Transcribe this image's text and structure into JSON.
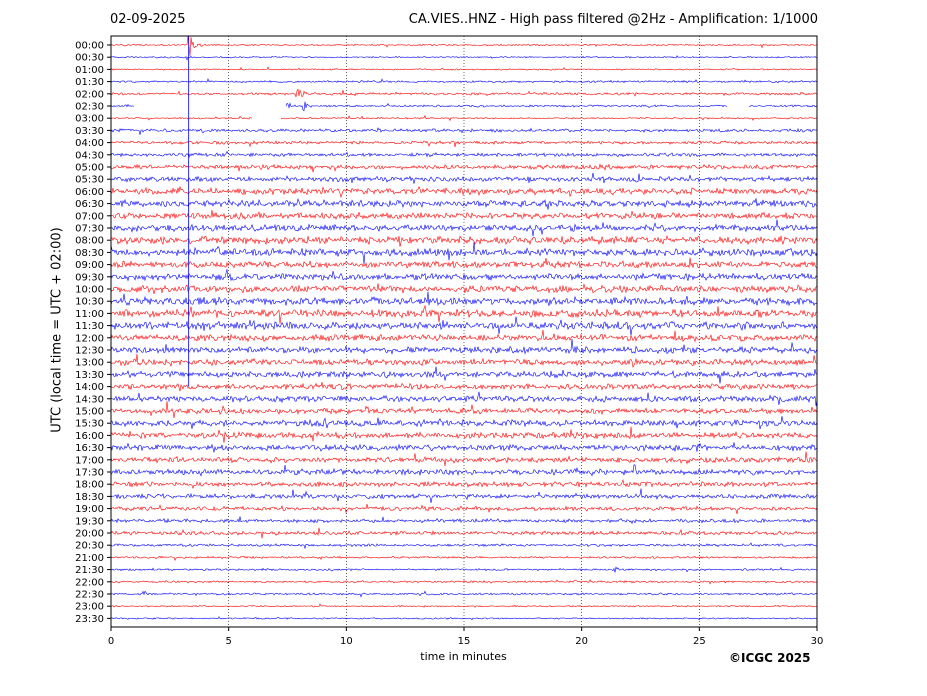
{
  "header": {
    "date": "02-09-2025",
    "title": "CA.VIES..HNZ - High pass filtered @2Hz - Amplification: 1/1000"
  },
  "footer": {
    "copyright": "©ICGC 2025"
  },
  "chart_data": {
    "type": "line",
    "title": "CA.VIES..HNZ - High pass filtered @2Hz - Amplification: 1/1000",
    "xlabel": "time in minutes",
    "ylabel": "UTC (local time = UTC + 02:00)",
    "xlim": [
      0,
      30
    ],
    "x_ticks": [
      0,
      5,
      10,
      15,
      20,
      25,
      30
    ],
    "grid": "vertical dotted at x = 5, 10, 15, 20, 25",
    "trace_colors": [
      "#ff0000",
      "#0000ff"
    ],
    "rows": [
      "00:00",
      "00:30",
      "01:00",
      "01:30",
      "02:00",
      "02:30",
      "03:00",
      "03:30",
      "04:00",
      "04:30",
      "05:00",
      "05:30",
      "06:00",
      "06:30",
      "07:00",
      "07:30",
      "08:00",
      "08:30",
      "09:00",
      "09:30",
      "10:00",
      "10:30",
      "11:00",
      "11:30",
      "12:00",
      "12:30",
      "13:00",
      "13:30",
      "14:00",
      "14:30",
      "15:00",
      "15:30",
      "16:00",
      "16:30",
      "17:00",
      "17:30",
      "18:00",
      "18:30",
      "19:00",
      "19:30",
      "20:00",
      "20:30",
      "21:00",
      "21:30",
      "22:00",
      "22:30",
      "23:00",
      "23:30"
    ],
    "noise_level": [
      0.3,
      0.3,
      0.3,
      0.4,
      0.5,
      0.4,
      0.3,
      0.6,
      0.6,
      0.7,
      0.9,
      1.0,
      1.3,
      1.3,
      1.2,
      1.3,
      1.5,
      1.5,
      1.3,
      1.3,
      1.4,
      1.5,
      1.5,
      1.5,
      1.3,
      1.3,
      1.2,
      1.2,
      1.1,
      1.2,
      1.1,
      1.2,
      1.2,
      1.2,
      1.1,
      1.1,
      1.0,
      0.9,
      0.8,
      0.7,
      0.7,
      0.5,
      0.4,
      0.4,
      0.4,
      0.4,
      0.3,
      0.3
    ],
    "events": [
      {
        "row": 0,
        "t": 3.3,
        "amp": 9
      },
      {
        "row": 4,
        "t": 7.9,
        "amp": 4
      },
      {
        "row": 5,
        "t": 7.5,
        "amp": 2
      },
      {
        "row": 5,
        "t": 8.2,
        "amp": 3
      },
      {
        "row": 10,
        "t": 21.0,
        "amp": 3
      },
      {
        "row": 11,
        "t": 20.9,
        "amp": 2
      },
      {
        "row": 12,
        "t": 8.9,
        "amp": 2
      },
      {
        "row": 22,
        "t": 3.4,
        "amp": 3
      },
      {
        "row": 23,
        "t": 3.2,
        "amp": 3
      },
      {
        "row": 31,
        "t": 9.1,
        "amp": 3
      },
      {
        "row": 31,
        "t": 27.6,
        "amp": 3
      },
      {
        "row": 32,
        "t": 8.6,
        "amp": 2
      },
      {
        "row": 33,
        "t": 24.8,
        "amp": 2
      },
      {
        "row": 37,
        "t": 19.8,
        "amp": 1.5
      },
      {
        "row": 43,
        "t": 21.4,
        "amp": 1.5
      },
      {
        "row": 44,
        "t": 19.7,
        "amp": 1.5
      },
      {
        "row": 45,
        "t": 1.4,
        "amp": 1.5
      }
    ],
    "gaps": [
      {
        "row": 5,
        "from": 1.0,
        "to": 7.4
      },
      {
        "row": 5,
        "from": 26.2,
        "to": 27.1
      },
      {
        "row": 6,
        "from": 6.0,
        "to": 7.2
      }
    ],
    "spike_line": {
      "t": 3.3,
      "from_row": 0,
      "to_row": 28
    }
  }
}
